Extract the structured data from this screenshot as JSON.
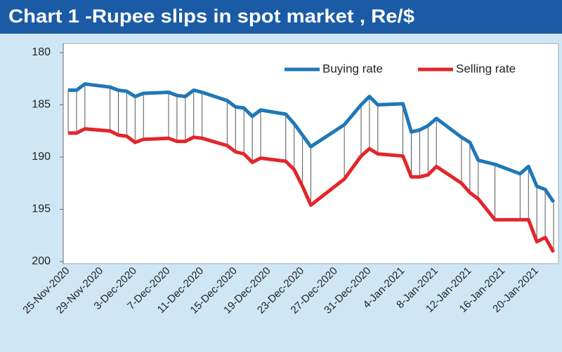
{
  "chart_data": {
    "type": "line",
    "title": "Chart 1 -Rupee slips in spot market , Re/$",
    "x": [
      "25-Nov-2020",
      "26-Nov-2020",
      "27-Nov-2020",
      "30-Nov-2020",
      "1-Dec-2020",
      "2-Dec-2020",
      "3-Dec-2020",
      "4-Dec-2020",
      "7-Dec-2020",
      "8-Dec-2020",
      "9-Dec-2020",
      "10-Dec-2020",
      "11-Dec-2020",
      "14-Dec-2020",
      "15-Dec-2020",
      "16-Dec-2020",
      "17-Dec-2020",
      "18-Dec-2020",
      "21-Dec-2020",
      "22-Dec-2020",
      "23-Dec-2020",
      "24-Dec-2020",
      "28-Dec-2020",
      "30-Dec-2020",
      "31-Dec-2020",
      "1-Jan-2021",
      "4-Jan-2021",
      "5-Jan-2021",
      "6-Jan-2021",
      "7-Jan-2021",
      "8-Jan-2021",
      "11-Jan-2021",
      "12-Jan-2021",
      "13-Jan-2021",
      "15-Jan-2021",
      "18-Jan-2021",
      "19-Jan-2021",
      "20-Jan-2021",
      "21-Jan-2021",
      "22-Jan-2021"
    ],
    "xticks": [
      "25-Nov-2020",
      "29-Nov-2020",
      "3-Dec-2020",
      "7-Dec-2020",
      "11-Dec-2020",
      "15-Dec-2020",
      "19-Dec-2020",
      "23-Dec-2020",
      "27-Dec-2020",
      "31-Dec-2020",
      "4-Jan-2021",
      "8-Jan-2021",
      "12-Jan-2021",
      "16-Jan-2021",
      "20-Jan-2021"
    ],
    "series": [
      {
        "name": "Buying rate",
        "color": "#1f77b8",
        "values": [
          183.6,
          183.6,
          183.0,
          183.3,
          183.6,
          183.7,
          184.2,
          183.9,
          183.8,
          184.1,
          184.2,
          183.6,
          183.8,
          184.6,
          185.2,
          185.3,
          186.1,
          185.5,
          185.9,
          186.8,
          187.9,
          189.0,
          186.9,
          185.0,
          184.2,
          185.0,
          184.9,
          187.6,
          187.4,
          187.0,
          186.3,
          188.1,
          188.6,
          190.3,
          190.7,
          191.6,
          190.9,
          192.8,
          193.1,
          194.3
        ]
      },
      {
        "name": "Selling rate",
        "color": "#e3262b",
        "values": [
          187.7,
          187.7,
          187.3,
          187.5,
          187.9,
          188.0,
          188.6,
          188.3,
          188.2,
          188.5,
          188.5,
          188.1,
          188.2,
          188.9,
          189.5,
          189.7,
          190.5,
          190.1,
          190.4,
          191.2,
          192.8,
          194.6,
          192.1,
          189.9,
          189.2,
          189.7,
          189.9,
          191.9,
          191.9,
          191.7,
          190.9,
          192.5,
          193.4,
          194.0,
          196.0,
          196.0,
          196.0,
          198.1,
          197.7,
          199.1
        ]
      }
    ],
    "ylim": [
      180,
      200
    ],
    "yticks": [
      180,
      185,
      190,
      195,
      200
    ],
    "y_inverted": true,
    "drop_lines": true,
    "grid": false
  }
}
